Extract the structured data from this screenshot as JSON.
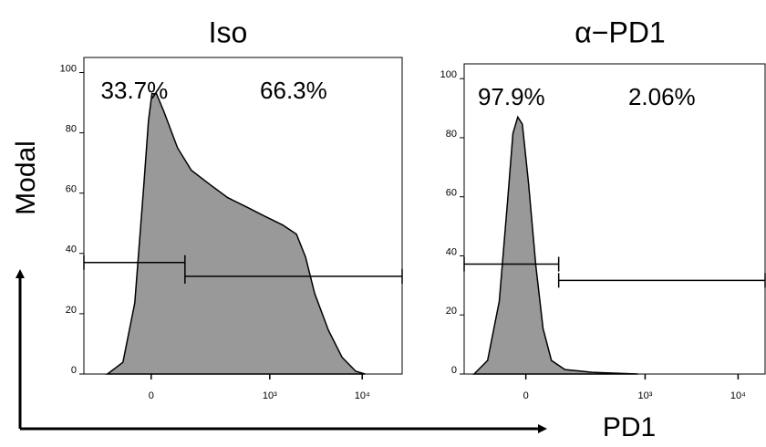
{
  "chart_data": [
    {
      "type": "area",
      "title": "Iso",
      "ylabel": "Modal",
      "x": [
        -138,
        -80,
        -44,
        -19,
        -7,
        2,
        14,
        34,
        74,
        123,
        211,
        345,
        551,
        874,
        1383,
        1946,
        2444,
        3068,
        4316,
        6074,
        8528,
        10712
      ],
      "values": [
        0,
        3.9,
        23.6,
        63,
        84,
        93,
        93,
        87,
        75,
        67.6,
        63,
        58.5,
        55.5,
        52.4,
        49.4,
        46.4,
        38.8,
        26.7,
        14.5,
        5.5,
        0.9,
        0
      ],
      "color": "#999999",
      "xlim": [
        -270,
        27000
      ],
      "ylim": [
        0,
        105
      ],
      "xticks": [
        0,
        {
          "value": 1000,
          "label": "10³"
        },
        {
          "value": 10000,
          "label": "10⁴"
        }
      ],
      "yticks": [
        0,
        20,
        40,
        60,
        80,
        100
      ],
      "gates": [
        {
          "label": "33.7%",
          "xrange": [
            -270,
            99
          ],
          "y": 37
        },
        {
          "label": "66.3%",
          "xrange": [
            99,
            27000
          ],
          "y": 32.4
        }
      ]
    },
    {
      "type": "area",
      "title": "α−PD1",
      "xlabel": "PD1",
      "x": [
        -174,
        -115,
        -74,
        -49,
        -34,
        -21,
        -9,
        7,
        26,
        46,
        71,
        118,
        260,
        835
      ],
      "values": [
        0,
        4.6,
        24.6,
        58.5,
        81.5,
        87,
        84.6,
        64.6,
        37,
        15.4,
        4.6,
        1.5,
        0.6,
        0
      ],
      "color": "#999999",
      "xlim": [
        -230,
        19500
      ],
      "ylim": [
        0,
        105
      ],
      "xticks": [
        0,
        {
          "value": 1000,
          "label": "10³"
        },
        {
          "value": 10000,
          "label": "10⁴"
        }
      ],
      "yticks": [
        0,
        20,
        40,
        60,
        80,
        100
      ],
      "gates": [
        {
          "label": "97.9%",
          "xrange": [
            -230,
            95
          ],
          "y": 37.2
        },
        {
          "label": "2.06%",
          "xrange": [
            95,
            19500
          ],
          "y": 31.7
        }
      ]
    }
  ]
}
